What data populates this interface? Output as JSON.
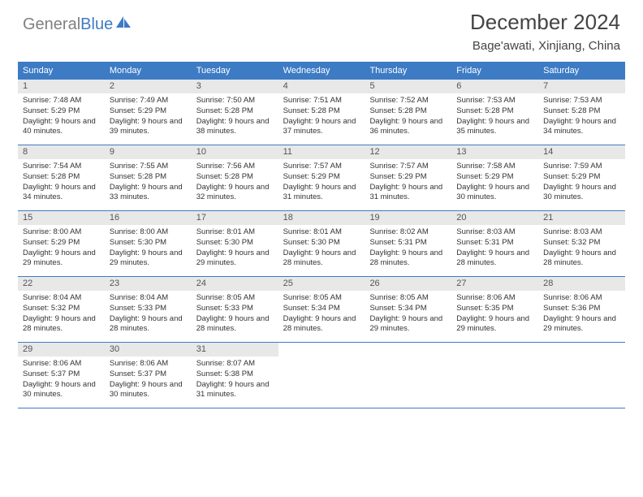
{
  "logo": {
    "text1": "General",
    "text2": "Blue"
  },
  "title": "December 2024",
  "location": "Bage'awati, Xinjiang, China",
  "header_color": "#3d7bc5",
  "daynum_bg": "#e8e8e8",
  "dayHeaders": [
    "Sunday",
    "Monday",
    "Tuesday",
    "Wednesday",
    "Thursday",
    "Friday",
    "Saturday"
  ],
  "weeks": [
    [
      {
        "n": "1",
        "sr": "7:48 AM",
        "ss": "5:29 PM",
        "d": "9 hours and 40 minutes."
      },
      {
        "n": "2",
        "sr": "7:49 AM",
        "ss": "5:29 PM",
        "d": "9 hours and 39 minutes."
      },
      {
        "n": "3",
        "sr": "7:50 AM",
        "ss": "5:28 PM",
        "d": "9 hours and 38 minutes."
      },
      {
        "n": "4",
        "sr": "7:51 AM",
        "ss": "5:28 PM",
        "d": "9 hours and 37 minutes."
      },
      {
        "n": "5",
        "sr": "7:52 AM",
        "ss": "5:28 PM",
        "d": "9 hours and 36 minutes."
      },
      {
        "n": "6",
        "sr": "7:53 AM",
        "ss": "5:28 PM",
        "d": "9 hours and 35 minutes."
      },
      {
        "n": "7",
        "sr": "7:53 AM",
        "ss": "5:28 PM",
        "d": "9 hours and 34 minutes."
      }
    ],
    [
      {
        "n": "8",
        "sr": "7:54 AM",
        "ss": "5:28 PM",
        "d": "9 hours and 34 minutes."
      },
      {
        "n": "9",
        "sr": "7:55 AM",
        "ss": "5:28 PM",
        "d": "9 hours and 33 minutes."
      },
      {
        "n": "10",
        "sr": "7:56 AM",
        "ss": "5:28 PM",
        "d": "9 hours and 32 minutes."
      },
      {
        "n": "11",
        "sr": "7:57 AM",
        "ss": "5:29 PM",
        "d": "9 hours and 31 minutes."
      },
      {
        "n": "12",
        "sr": "7:57 AM",
        "ss": "5:29 PM",
        "d": "9 hours and 31 minutes."
      },
      {
        "n": "13",
        "sr": "7:58 AM",
        "ss": "5:29 PM",
        "d": "9 hours and 30 minutes."
      },
      {
        "n": "14",
        "sr": "7:59 AM",
        "ss": "5:29 PM",
        "d": "9 hours and 30 minutes."
      }
    ],
    [
      {
        "n": "15",
        "sr": "8:00 AM",
        "ss": "5:29 PM",
        "d": "9 hours and 29 minutes."
      },
      {
        "n": "16",
        "sr": "8:00 AM",
        "ss": "5:30 PM",
        "d": "9 hours and 29 minutes."
      },
      {
        "n": "17",
        "sr": "8:01 AM",
        "ss": "5:30 PM",
        "d": "9 hours and 29 minutes."
      },
      {
        "n": "18",
        "sr": "8:01 AM",
        "ss": "5:30 PM",
        "d": "9 hours and 28 minutes."
      },
      {
        "n": "19",
        "sr": "8:02 AM",
        "ss": "5:31 PM",
        "d": "9 hours and 28 minutes."
      },
      {
        "n": "20",
        "sr": "8:03 AM",
        "ss": "5:31 PM",
        "d": "9 hours and 28 minutes."
      },
      {
        "n": "21",
        "sr": "8:03 AM",
        "ss": "5:32 PM",
        "d": "9 hours and 28 minutes."
      }
    ],
    [
      {
        "n": "22",
        "sr": "8:04 AM",
        "ss": "5:32 PM",
        "d": "9 hours and 28 minutes."
      },
      {
        "n": "23",
        "sr": "8:04 AM",
        "ss": "5:33 PM",
        "d": "9 hours and 28 minutes."
      },
      {
        "n": "24",
        "sr": "8:05 AM",
        "ss": "5:33 PM",
        "d": "9 hours and 28 minutes."
      },
      {
        "n": "25",
        "sr": "8:05 AM",
        "ss": "5:34 PM",
        "d": "9 hours and 28 minutes."
      },
      {
        "n": "26",
        "sr": "8:05 AM",
        "ss": "5:34 PM",
        "d": "9 hours and 29 minutes."
      },
      {
        "n": "27",
        "sr": "8:06 AM",
        "ss": "5:35 PM",
        "d": "9 hours and 29 minutes."
      },
      {
        "n": "28",
        "sr": "8:06 AM",
        "ss": "5:36 PM",
        "d": "9 hours and 29 minutes."
      }
    ],
    [
      {
        "n": "29",
        "sr": "8:06 AM",
        "ss": "5:37 PM",
        "d": "9 hours and 30 minutes."
      },
      {
        "n": "30",
        "sr": "8:06 AM",
        "ss": "5:37 PM",
        "d": "9 hours and 30 minutes."
      },
      {
        "n": "31",
        "sr": "8:07 AM",
        "ss": "5:38 PM",
        "d": "9 hours and 31 minutes."
      },
      {
        "empty": true
      },
      {
        "empty": true
      },
      {
        "empty": true
      },
      {
        "empty": true
      }
    ]
  ]
}
